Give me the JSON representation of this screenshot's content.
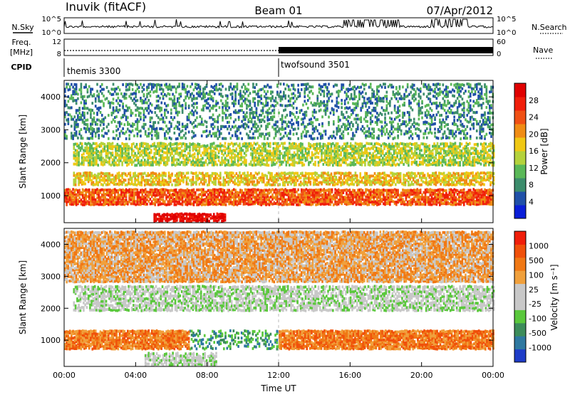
{
  "header": {
    "station": "Inuvik (fitACF)",
    "beam": "Beam 01",
    "date": "07/Apr/2012"
  },
  "top_panels": {
    "nsky_label": "N.Sky",
    "nsky_ticks": [
      "10^5",
      "10^0"
    ],
    "nsearch_label": "N.Search",
    "nsearch_ticks": [
      "10^5",
      "10^0"
    ],
    "freq_label": "Freq.",
    "freq_unit": "[MHz]",
    "freq_ticks": [
      "12",
      "8"
    ],
    "nave_label": "Nave",
    "nave_ticks": [
      "60",
      "0"
    ],
    "cpid_label": "CPID",
    "cpid_segments": [
      {
        "name": "themis 3300",
        "start_hour": 0,
        "end_hour": 12
      },
      {
        "name": "twofsound 3501",
        "start_hour": 12,
        "end_hour": 24
      }
    ]
  },
  "chart_data": [
    {
      "type": "heatmap",
      "title": "",
      "ylabel": "Slant Range [km]",
      "xlabel": "",
      "x_ticks": [
        "00:00",
        "04:00",
        "08:00",
        "12:00",
        "16:00",
        "20:00",
        "00:00"
      ],
      "y_ticks": [
        "1000",
        "2000",
        "3000",
        "4000"
      ],
      "ylim": [
        180,
        4500
      ],
      "xlim_hours": [
        0,
        24
      ],
      "colorbar": {
        "label": "Power [dB]",
        "ticks": [
          "28",
          "24",
          "20",
          "16",
          "12",
          "8",
          "4"
        ],
        "colors": [
          "#0a1ed8",
          "#2050a8",
          "#3c8c6c",
          "#5ab858",
          "#b4d23c",
          "#f0c814",
          "#f08c14",
          "#f05014",
          "#f01e0a",
          "#e00000"
        ]
      },
      "bands": [
        {
          "range_km": [
            200,
            450
          ],
          "hours": [
            5.0,
            9.0
          ],
          "class": 9
        },
        {
          "range_km": [
            700,
            1200
          ],
          "hours": [
            0.0,
            24.0
          ],
          "class": 7
        },
        {
          "range_km": [
            1300,
            1700
          ],
          "hours": [
            0.5,
            24.0
          ],
          "class": 5
        },
        {
          "range_km": [
            1900,
            2600
          ],
          "hours": [
            0.5,
            24.0
          ],
          "class": 4
        },
        {
          "range_km": [
            2700,
            4400
          ],
          "hours": [
            0.0,
            24.0
          ],
          "class": 2
        }
      ]
    },
    {
      "type": "heatmap",
      "title": "",
      "ylabel": "Slant Range [km]",
      "xlabel": "Time UT",
      "x_ticks": [
        "00:00",
        "04:00",
        "08:00",
        "12:00",
        "16:00",
        "20:00",
        "00:00"
      ],
      "y_ticks": [
        "1000",
        "2000",
        "3000",
        "4000"
      ],
      "ylim": [
        180,
        4500
      ],
      "xlim_hours": [
        0,
        24
      ],
      "colorbar": {
        "label": "Velocity [m s⁻¹]",
        "ticks": [
          "1000",
          "500",
          "100",
          "25",
          "-25",
          "-100",
          "-500",
          "-1000"
        ],
        "colors": [
          "#1e3cc8",
          "#2e78a0",
          "#3c8c5a",
          "#5ac83c",
          "#c8c8c8",
          "#c8c8c8",
          "#f0a03c",
          "#f07814",
          "#f0500a",
          "#f01e0a"
        ]
      },
      "bands": [
        {
          "range_km": [
            200,
            600
          ],
          "hours": [
            4.5,
            8.5
          ],
          "class": 4
        },
        {
          "range_km": [
            700,
            1300
          ],
          "hours": [
            7.0,
            12.0
          ],
          "class": 2
        },
        {
          "range_km": [
            700,
            1300
          ],
          "hours": [
            0.0,
            7.0
          ],
          "class": 7
        },
        {
          "range_km": [
            700,
            1300
          ],
          "hours": [
            12.0,
            24.0
          ],
          "class": 7
        },
        {
          "range_km": [
            1900,
            2700
          ],
          "hours": [
            0.5,
            24.0
          ],
          "class": 4
        },
        {
          "range_km": [
            2800,
            4400
          ],
          "hours": [
            0.0,
            24.0
          ],
          "class": 6
        }
      ]
    }
  ]
}
